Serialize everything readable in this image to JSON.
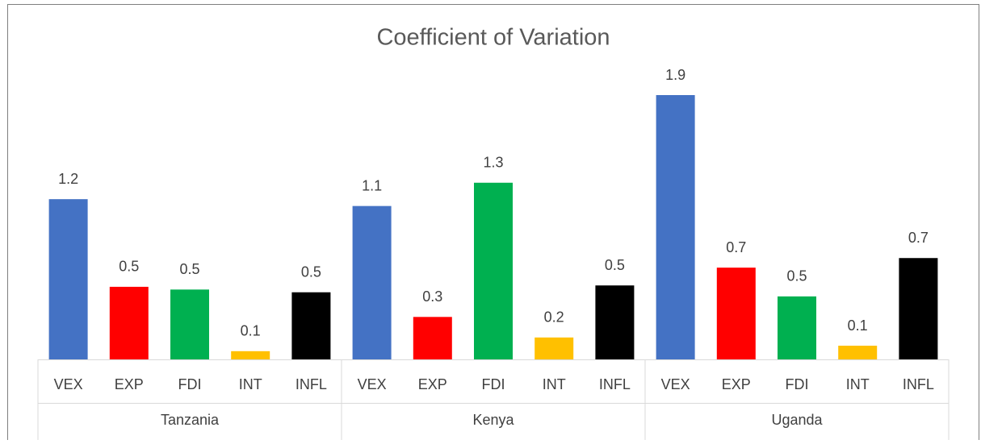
{
  "chart_data": {
    "type": "bar",
    "title": "Coefficient of Variation",
    "colors": [
      "#4472c4",
      "#ff0000",
      "#00b050",
      "#ffc000",
      "#000000"
    ],
    "groups": [
      {
        "name": "Tanzania",
        "categories": [
          "VEX",
          "EXP",
          "FDI",
          "INT",
          "INFL"
        ],
        "values": [
          1.17,
          0.53,
          0.51,
          0.06,
          0.49
        ],
        "value_labels": [
          "1.2",
          "0.5",
          "0.5",
          "0.1",
          "0.5"
        ]
      },
      {
        "name": "Kenya",
        "categories": [
          "VEX",
          "EXP",
          "FDI",
          "INT",
          "INFL"
        ],
        "values": [
          1.12,
          0.31,
          1.29,
          0.16,
          0.54
        ],
        "value_labels": [
          "1.1",
          "0.3",
          "1.3",
          "0.2",
          "0.5"
        ]
      },
      {
        "name": "Uganda",
        "categories": [
          "VEX",
          "EXP",
          "FDI",
          "INT",
          "INFL"
        ],
        "values": [
          1.93,
          0.67,
          0.46,
          0.1,
          0.74
        ],
        "value_labels": [
          "1.9",
          "0.7",
          "0.5",
          "0.1",
          "0.7"
        ]
      }
    ]
  }
}
